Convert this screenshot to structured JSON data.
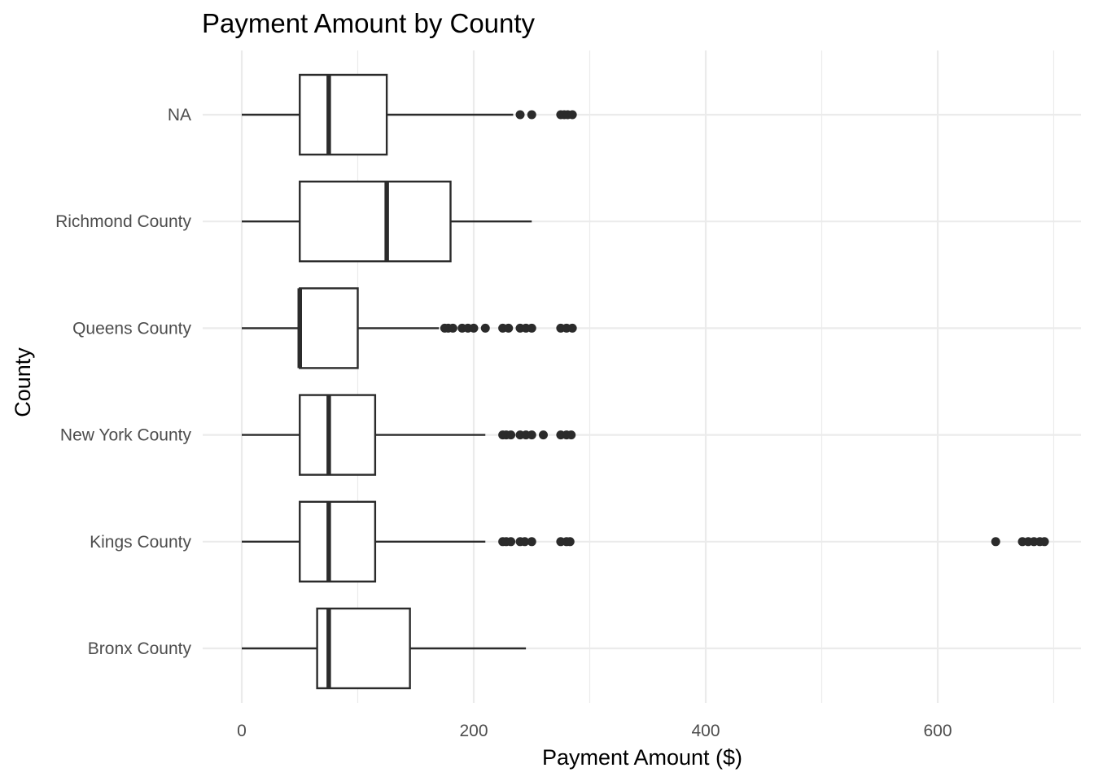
{
  "chart_data": {
    "type": "boxplot",
    "orientation": "horizontal",
    "title": "Payment Amount by County",
    "xlabel": "Payment Amount ($)",
    "ylabel": "County",
    "xlim": [
      0,
      700
    ],
    "x_ticks": [
      0,
      200,
      400,
      600
    ],
    "x_tick_labels": [
      "0",
      "200",
      "400",
      "600"
    ],
    "x_minor_ticks": [
      100,
      300,
      500,
      700
    ],
    "grid": true,
    "legend": null,
    "categories": [
      "Bronx County",
      "Kings County",
      "New York County",
      "Queens County",
      "Richmond County",
      "NA"
    ],
    "series": [
      {
        "name": "Bronx County",
        "min": 0,
        "q1": 65,
        "median": 75,
        "q3": 145,
        "max": 245,
        "outliers": []
      },
      {
        "name": "Kings County",
        "min": 0,
        "q1": 50,
        "median": 75,
        "q3": 115,
        "max": 210,
        "outliers": [
          225,
          228,
          232,
          240,
          244,
          250,
          275,
          280,
          283,
          650,
          673,
          678,
          683,
          688,
          692
        ]
      },
      {
        "name": "New York County",
        "min": 0,
        "q1": 50,
        "median": 75,
        "q3": 115,
        "max": 210,
        "outliers": [
          225,
          228,
          232,
          240,
          245,
          250,
          260,
          275,
          280,
          284
        ]
      },
      {
        "name": "Queens County",
        "min": 0,
        "q1": 50,
        "median": 50,
        "q3": 100,
        "max": 170,
        "outliers": [
          175,
          178,
          182,
          190,
          195,
          200,
          210,
          225,
          230,
          240,
          245,
          250,
          275,
          280,
          285
        ]
      },
      {
        "name": "Richmond County",
        "min": 0,
        "q1": 50,
        "median": 125,
        "q3": 180,
        "max": 250,
        "outliers": []
      },
      {
        "name": "NA",
        "min": 0,
        "q1": 50,
        "median": 75,
        "q3": 125,
        "max": 234,
        "outliers": [
          240,
          250,
          275,
          278,
          281,
          285
        ]
      }
    ]
  }
}
